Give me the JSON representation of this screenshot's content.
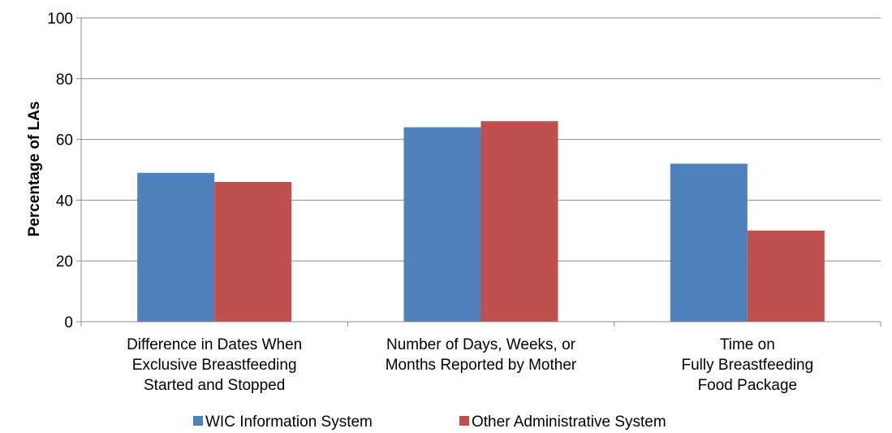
{
  "chart_data": {
    "type": "bar",
    "categories": [
      [
        "Difference in Dates When",
        "Exclusive Breastfeeding",
        "Started and Stopped"
      ],
      [
        "Number of Days, Weeks, or",
        "Months Reported by Mother"
      ],
      [
        "Time on",
        "Fully Breastfeeding",
        "Food Package"
      ]
    ],
    "series": [
      {
        "name": "WIC Information System",
        "color": "#4F81BD",
        "values": [
          49,
          64,
          52
        ]
      },
      {
        "name": "Other Administrative System",
        "color": "#C0504D",
        "values": [
          46,
          66,
          30
        ]
      }
    ],
    "ylabel": "Percentage of LAs",
    "ylim": [
      0,
      100
    ],
    "yticks": [
      0,
      20,
      40,
      60,
      80,
      100
    ],
    "grid": true,
    "legend": "bottom"
  }
}
